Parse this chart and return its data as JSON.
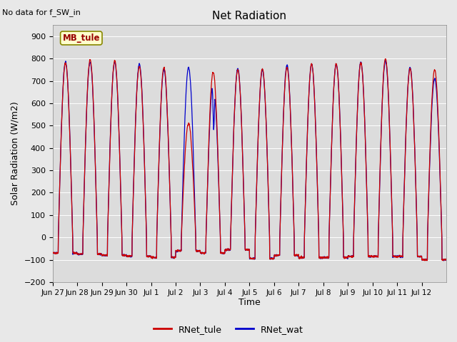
{
  "title": "Net Radiation",
  "note": "No data for f_SW_in",
  "ylabel": "Solar Radiation (W/m2)",
  "xlabel": "Time",
  "legend_label1": "RNet_tule",
  "legend_label2": "RNet_wat",
  "color1": "#cc0000",
  "color2": "#0000cc",
  "ylim": [
    -200,
    950
  ],
  "yticks": [
    -200,
    -100,
    0,
    100,
    200,
    300,
    400,
    500,
    600,
    700,
    800,
    900
  ],
  "fig_bg_color": "#e8e8e8",
  "plot_bg_color": "#dcdcdc",
  "inset_label": "MB_tule",
  "inset_bg": "#ffffcc",
  "inset_edge": "#999900",
  "xtick_labels": [
    "Jun 27",
    "Jun 28",
    "Jun 29",
    "Jun 30",
    "Jul 1",
    "Jul 2",
    "Jul 3",
    "Jul 4",
    "Jul 5",
    "Jul 6",
    "Jul 7",
    "Jul 8",
    "Jul 9",
    "Jul 10",
    "Jul 11",
    "Jul 12"
  ],
  "num_days": 16,
  "peaks_tule": [
    780,
    795,
    790,
    765,
    760,
    510,
    740,
    750,
    755,
    760,
    775,
    775,
    780,
    800,
    755,
    750
  ],
  "peaks_wat": [
    785,
    785,
    785,
    775,
    750,
    760,
    690,
    755,
    748,
    770,
    775,
    775,
    785,
    790,
    760,
    710
  ],
  "troughs": [
    -70,
    -75,
    -80,
    -85,
    -90,
    -60,
    -70,
    -55,
    -95,
    -80,
    -90,
    -90,
    -85,
    -85,
    -85,
    -100
  ]
}
